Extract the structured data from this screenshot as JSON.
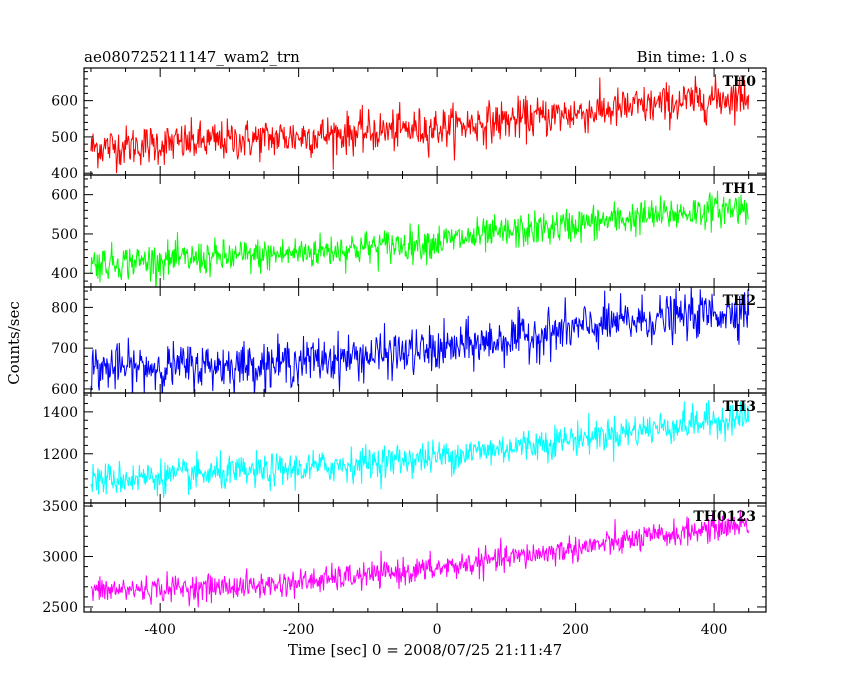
{
  "header": {
    "title": "ae080725211147_wam2_trn",
    "bin_time": "Bin time: 1.0 s"
  },
  "chart_data": {
    "type": "line",
    "title": "ae080725211147_wam2_trn",
    "subtitle": "Bin time: 1.0 s",
    "xlabel": "Time [sec] 0 = 2008/07/25 21:11:47",
    "ylabel": "Counts/sec",
    "xlim": [
      -510,
      475
    ],
    "x_ticks": [
      -400,
      -200,
      0,
      200,
      400
    ],
    "x_range_data": [
      -500,
      450
    ],
    "grid": false,
    "panels": [
      {
        "name": "TH0",
        "color": "#ff0000",
        "ylim": [
          395,
          690
        ],
        "y_ticks": [
          400,
          500,
          600
        ],
        "trend": {
          "x": [
            -500,
            -250,
            0,
            250,
            450
          ],
          "y": [
            470,
            495,
            525,
            575,
            615
          ]
        },
        "noise": 28
      },
      {
        "name": "TH1",
        "color": "#00ff00",
        "ylim": [
          365,
          650
        ],
        "y_ticks": [
          400,
          500,
          600
        ],
        "trend": {
          "x": [
            -500,
            -250,
            0,
            250,
            450
          ],
          "y": [
            425,
            445,
            480,
            535,
            570
          ]
        },
        "noise": 22
      },
      {
        "name": "TH2",
        "color": "#0000ff",
        "ylim": [
          590,
          850
        ],
        "y_ticks": [
          600,
          700,
          800
        ],
        "trend": {
          "x": [
            -500,
            -250,
            0,
            250,
            450
          ],
          "y": [
            650,
            660,
            695,
            760,
            795
          ]
        },
        "noise": 28
      },
      {
        "name": "TH3",
        "color": "#00ffff",
        "ylim": [
          965,
          1490
        ],
        "y_ticks": [
          1200,
          1400
        ],
        "trend": {
          "x": [
            -500,
            -250,
            0,
            250,
            450
          ],
          "y": [
            1075,
            1115,
            1185,
            1295,
            1380
          ]
        },
        "noise": 40
      },
      {
        "name": "TH0123",
        "color": "#ff00ff",
        "ylim": [
          2450,
          3530
        ],
        "y_ticks": [
          2500,
          3000,
          3500
        ],
        "trend": {
          "x": [
            -500,
            -250,
            0,
            250,
            450
          ],
          "y": [
            2660,
            2710,
            2880,
            3130,
            3330
          ]
        },
        "noise": 65
      }
    ]
  }
}
